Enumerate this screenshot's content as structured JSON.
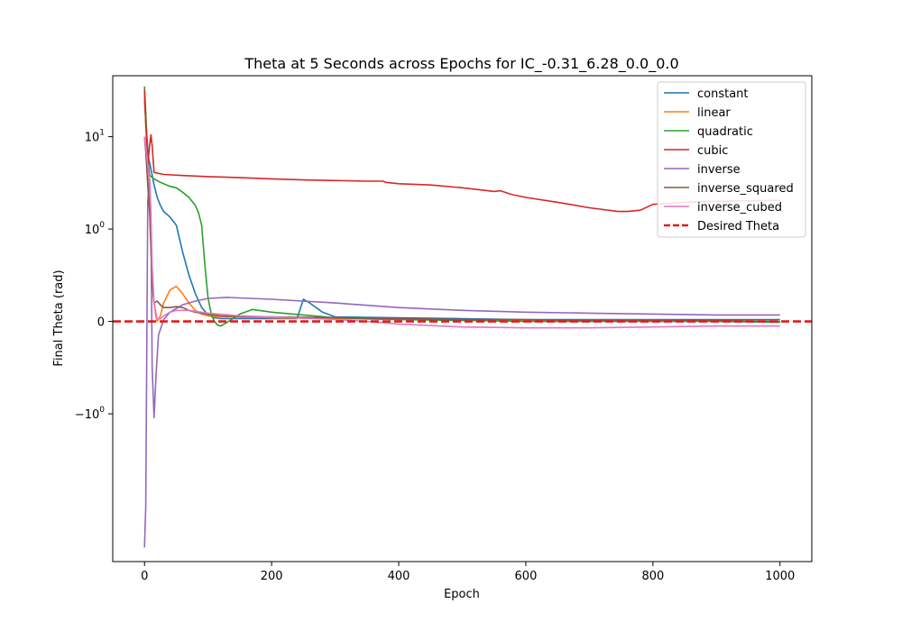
{
  "chart_data": {
    "type": "line",
    "title": "Theta at 5 Seconds across Epochs for IC_-0.31_6.28_0.0_0.0",
    "xlabel": "Epoch",
    "ylabel": "Final Theta (rad)",
    "xlim": [
      -50,
      1050
    ],
    "yscale": "symlog",
    "grid": false,
    "legend_position": "top-right",
    "x_ticks": [
      {
        "value": 0,
        "label": "0"
      },
      {
        "value": 200,
        "label": "200"
      },
      {
        "value": 400,
        "label": "400"
      },
      {
        "value": 600,
        "label": "600"
      },
      {
        "value": 800,
        "label": "800"
      },
      {
        "value": 1000,
        "label": "1000"
      }
    ],
    "y_ticks": [
      {
        "label": "10",
        "sup": "1"
      },
      {
        "label": "10",
        "sup": "0"
      },
      {
        "label": "0",
        "sup": ""
      },
      {
        "label": "−10",
        "sup": "0"
      }
    ],
    "series": [
      {
        "name": "constant",
        "color": "#1f77b4",
        "x": [
          0,
          3,
          6,
          10,
          15,
          20,
          25,
          30,
          40,
          50,
          60,
          70,
          80,
          90,
          100,
          110,
          120,
          150,
          200,
          240,
          250,
          260,
          280,
          300,
          400,
          500,
          600,
          700,
          800,
          900,
          1000
        ],
        "y": [
          25,
          12,
          6,
          4.5,
          3.0,
          2.2,
          1.8,
          1.55,
          1.35,
          1.1,
          0.75,
          0.5,
          0.3,
          0.15,
          0.07,
          0.04,
          0.03,
          0.03,
          0.03,
          0.03,
          0.24,
          0.2,
          0.1,
          0.05,
          0.04,
          0.03,
          0.02,
          0.02,
          0.02,
          0.02,
          0.02
        ]
      },
      {
        "name": "linear",
        "color": "#ff7f0e",
        "x": [
          0,
          2,
          5,
          8,
          12,
          15,
          18,
          20,
          25,
          30,
          40,
          50,
          60,
          70,
          80,
          90,
          100,
          120,
          150,
          200,
          300,
          400,
          500,
          600,
          700,
          800,
          900,
          1000
        ],
        "y": [
          28,
          14,
          6,
          2,
          0.4,
          0.2,
          0.05,
          0.0,
          0.06,
          0.2,
          0.34,
          0.38,
          0.3,
          0.2,
          0.12,
          0.08,
          0.06,
          0.05,
          0.05,
          0.04,
          0.03,
          0.02,
          0.01,
          0.01,
          0.01,
          0.01,
          0.0,
          0.0
        ]
      },
      {
        "name": "quadratic",
        "color": "#2ca02c",
        "x": [
          0,
          2,
          5,
          8,
          15,
          25,
          40,
          50,
          60,
          70,
          80,
          85,
          90,
          95,
          100,
          105,
          110,
          115,
          120,
          130,
          150,
          170,
          200,
          250,
          300,
          400,
          500,
          600,
          700,
          800,
          900,
          1000
        ],
        "y": [
          35,
          18,
          6,
          3.8,
          3.5,
          3.2,
          2.9,
          2.8,
          2.5,
          2.2,
          1.8,
          1.5,
          1.1,
          0.6,
          0.25,
          0.08,
          0.0,
          -0.04,
          -0.05,
          -0.01,
          0.08,
          0.13,
          0.1,
          0.07,
          0.04,
          0.02,
          0.01,
          0.0,
          0.0,
          0.0,
          0.0,
          -0.01
        ]
      },
      {
        "name": "cubic",
        "color": "#d62728",
        "x": [
          0,
          2,
          5,
          8,
          10,
          12,
          15,
          30,
          60,
          100,
          150,
          200,
          250,
          300,
          350,
          365,
          375,
          380,
          400,
          450,
          500,
          540,
          550,
          560,
          575,
          580,
          600,
          650,
          700,
          745,
          760,
          780,
          800,
          850,
          900,
          1000
        ],
        "y": [
          32,
          14,
          5,
          8,
          10.5,
          8,
          4.1,
          3.9,
          3.8,
          3.7,
          3.6,
          3.5,
          3.4,
          3.35,
          3.3,
          3.3,
          3.3,
          3.2,
          3.1,
          3.0,
          2.8,
          2.6,
          2.55,
          2.6,
          2.4,
          2.35,
          2.2,
          1.95,
          1.7,
          1.55,
          1.55,
          1.6,
          1.85,
          1.95,
          2.0,
          2.05
        ]
      },
      {
        "name": "inverse",
        "color": "#9467bd",
        "x": [
          0,
          2,
          5,
          8,
          10,
          12,
          15,
          18,
          22,
          30,
          40,
          60,
          80,
          100,
          130,
          200,
          300,
          400,
          500,
          600,
          700,
          800,
          900,
          1000
        ],
        "y": [
          -28,
          -10,
          2,
          3.5,
          1.5,
          -0.5,
          -1.1,
          -0.6,
          -0.15,
          0.02,
          0.1,
          0.18,
          0.22,
          0.25,
          0.26,
          0.24,
          0.2,
          0.15,
          0.12,
          0.1,
          0.09,
          0.08,
          0.07,
          0.07
        ]
      },
      {
        "name": "inverse_squared",
        "color": "#8c564b",
        "x": [
          0,
          2,
          5,
          8,
          10,
          12,
          15,
          20,
          25,
          30,
          40,
          50,
          60,
          70,
          80,
          100,
          120,
          150,
          200,
          300,
          400,
          500,
          600,
          700,
          800,
          900,
          1000
        ],
        "y": [
          10,
          7,
          3,
          1.5,
          0.8,
          0.4,
          0.2,
          0.22,
          0.18,
          0.15,
          0.15,
          0.16,
          0.15,
          0.12,
          0.1,
          0.08,
          0.06,
          0.05,
          0.05,
          0.04,
          0.03,
          0.02,
          0.02,
          0.01,
          0.01,
          0.01,
          0.0
        ]
      },
      {
        "name": "inverse_cubed",
        "color": "#e377c2",
        "x": [
          0,
          2,
          5,
          8,
          10,
          12,
          15,
          20,
          25,
          30,
          40,
          50,
          70,
          100,
          150,
          200,
          300,
          350,
          400,
          500,
          600,
          650,
          700,
          800,
          900,
          1000
        ],
        "y": [
          10,
          8,
          5,
          3,
          1.5,
          0.6,
          0.2,
          0.02,
          0.03,
          0.06,
          0.1,
          0.12,
          0.12,
          0.09,
          0.06,
          0.05,
          0.02,
          0.0,
          -0.03,
          -0.06,
          -0.07,
          -0.07,
          -0.07,
          -0.06,
          -0.05,
          -0.05
        ]
      },
      {
        "name": "Desired Theta",
        "color": "#e31a1c",
        "dashed": true,
        "constant_y": 0
      }
    ]
  }
}
